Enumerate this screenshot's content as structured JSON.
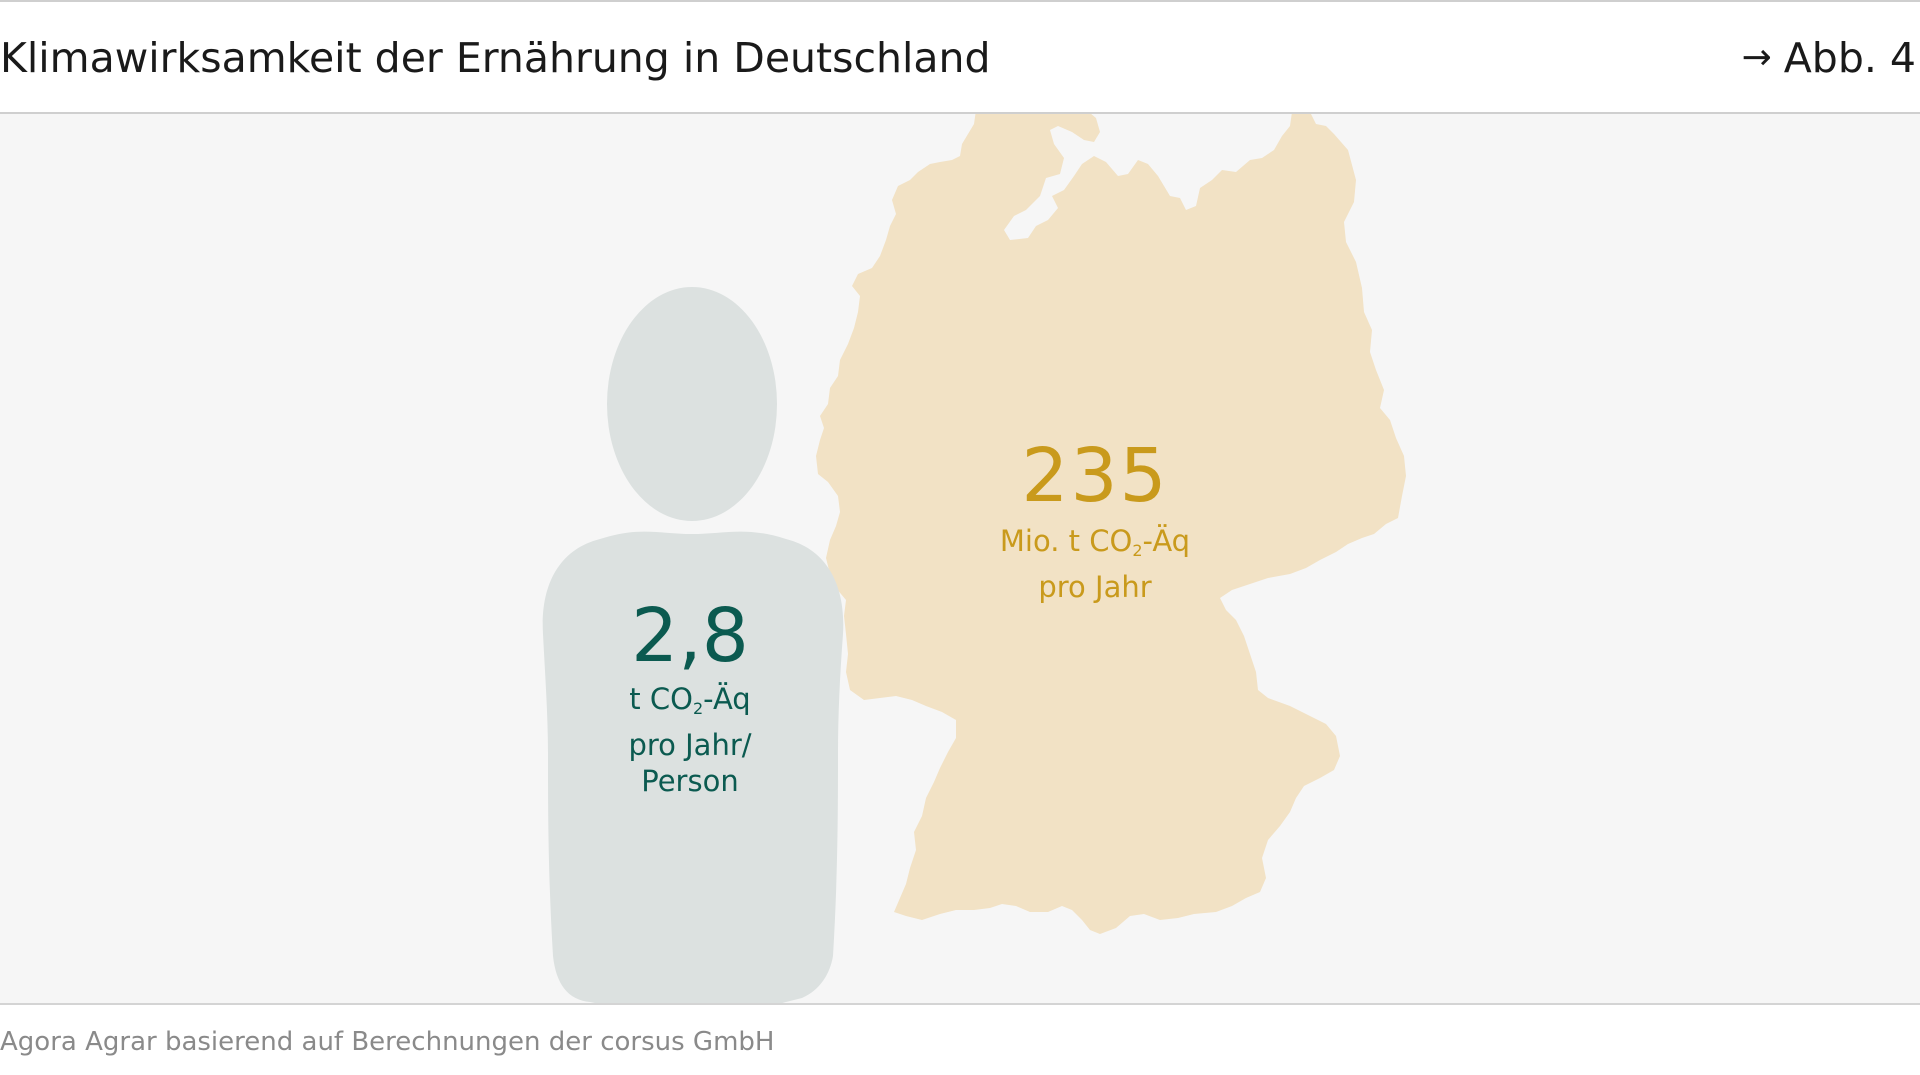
{
  "header": {
    "title": "Klimawirksamkeit der Ernährung in Deutschland",
    "figure_ref": "Abb. 4"
  },
  "germany": {
    "value": "235",
    "unit_prefix": "Mio. t CO",
    "unit_sub": "2",
    "unit_suffix": "-Äq",
    "unit_line2": "pro Jahr"
  },
  "person": {
    "value": "2,8",
    "unit_prefix": "t CO",
    "unit_sub": "2",
    "unit_suffix": "-Äq",
    "unit_line2": "pro Jahr/",
    "unit_line3": "Person"
  },
  "source": "Agora Agrar basierend auf Berechnungen der corsus GmbH",
  "colors": {
    "germany_fill": "#f2e2c5",
    "germany_text": "#c99a1c",
    "person_fill": "#dce1e0",
    "person_text": "#0b5a50",
    "panel_bg": "#f6f6f6"
  },
  "icons": {
    "arrow": "arrow-right-icon",
    "map": "germany-map-icon",
    "person": "person-silhouette-icon"
  }
}
